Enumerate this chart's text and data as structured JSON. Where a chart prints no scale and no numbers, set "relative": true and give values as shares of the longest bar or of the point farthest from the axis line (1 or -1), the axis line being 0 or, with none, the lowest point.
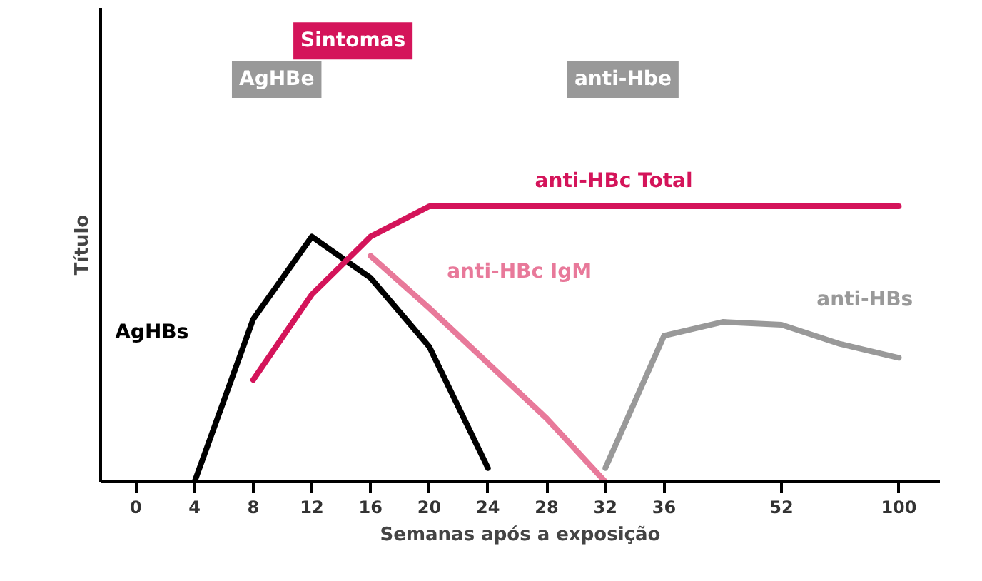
{
  "chart_data": {
    "type": "line",
    "relative": true,
    "xlabel": "Semanas após a exposição",
    "ylabel": "Título",
    "categories": [
      "0",
      "4",
      "8",
      "12",
      "16",
      "20",
      "24",
      "28",
      "32",
      "36",
      null,
      "52",
      null,
      "100"
    ],
    "series": [
      {
        "name": "AgHBs",
        "color": "#000000",
        "values": [
          null,
          0,
          0.59,
          0.89,
          0.74,
          0.49,
          0.05,
          null,
          null,
          null,
          null,
          null,
          null,
          null
        ]
      },
      {
        "name": "anti-HBc Total",
        "color": "#d4145a",
        "values": [
          null,
          null,
          0.37,
          0.68,
          0.89,
          1,
          1,
          1,
          1,
          1,
          1,
          1,
          1,
          1
        ]
      },
      {
        "name": "anti-HBc IgM",
        "color": "#e8799a",
        "values": [
          null,
          null,
          null,
          null,
          0.82,
          0.63,
          0.43,
          0.23,
          0,
          null,
          null,
          null,
          null,
          null
        ]
      },
      {
        "name": "anti-HBs",
        "color": "#999999",
        "values": [
          null,
          null,
          null,
          null,
          null,
          null,
          null,
          null,
          0.05,
          0.53,
          0.58,
          0.57,
          0.5,
          0.45
        ]
      }
    ],
    "annotations": [
      "Sintomas",
      "AgHBe",
      "anti-Hbe"
    ],
    "grid": false,
    "marker": "none",
    "line_style": "solid"
  }
}
